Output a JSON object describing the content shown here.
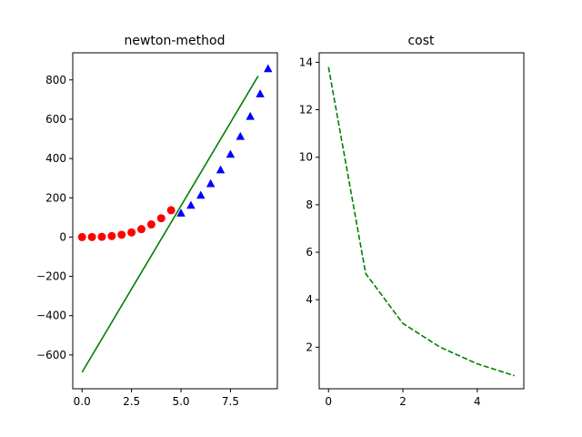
{
  "chart_data": [
    {
      "type": "line",
      "title": "newton-method",
      "xlabel": "",
      "ylabel": "",
      "xlim": [
        -0.47,
        9.87
      ],
      "ylim": [
        -772,
        938
      ],
      "x_ticks": [
        "0.0",
        "2.5",
        "5.0",
        "7.5"
      ],
      "x_tick_values": [
        0,
        2.5,
        5.0,
        7.5
      ],
      "y_ticks": [
        "−600",
        "−400",
        "−200",
        "0",
        "200",
        "400",
        "600",
        "800"
      ],
      "y_tick_values": [
        -600,
        -400,
        -200,
        0,
        200,
        400,
        600,
        800
      ],
      "series": [
        {
          "marker": "circle",
          "style": "markers",
          "color": "#ff0000",
          "x": [
            0,
            0.5,
            1.0,
            1.5,
            2.0,
            2.5,
            3.0,
            3.5,
            4.0,
            4.5
          ],
          "y": [
            0,
            0.2,
            1.5,
            5.1,
            12.0,
            23.4,
            40.5,
            64.3,
            96.0,
            136.7
          ]
        },
        {
          "marker": "triangle",
          "style": "markers",
          "color": "#0000ff",
          "x": [
            5.0,
            5.5,
            6.0,
            6.5,
            7.0,
            7.5,
            8.0,
            8.5,
            9.0,
            9.4
          ],
          "y": [
            122,
            162,
            213,
            272,
            342,
            421,
            512,
            614,
            729,
            857
          ]
        },
        {
          "marker": "none",
          "style": "solid",
          "color": "#008000",
          "x": [
            0,
            8.9
          ],
          "y": [
            -688,
            820
          ]
        }
      ]
    },
    {
      "type": "line",
      "title": "cost",
      "xlabel": "",
      "ylabel": "",
      "xlim": [
        -0.25,
        5.25
      ],
      "ylim": [
        0.25,
        14.4
      ],
      "x_ticks": [
        "0",
        "2",
        "4"
      ],
      "x_tick_values": [
        0,
        2,
        4
      ],
      "y_ticks": [
        "2",
        "4",
        "6",
        "8",
        "10",
        "12",
        "14"
      ],
      "y_tick_values": [
        2,
        4,
        6,
        8,
        10,
        12,
        14
      ],
      "series": [
        {
          "marker": "none",
          "style": "dashed",
          "color": "#008000",
          "x": [
            0,
            1,
            2,
            3,
            4,
            5
          ],
          "y": [
            13.8,
            5.1,
            3.0,
            2.0,
            1.3,
            0.8
          ]
        }
      ]
    }
  ]
}
